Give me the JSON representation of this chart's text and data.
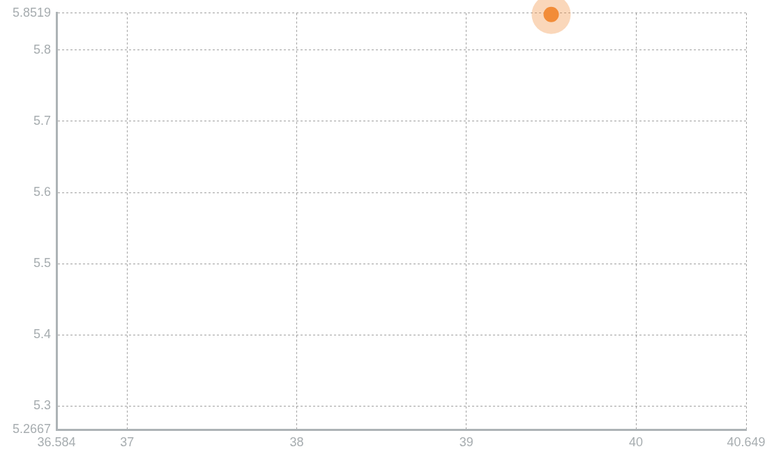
{
  "chart_data": {
    "type": "scatter",
    "series": [
      {
        "color": "#f28c38",
        "x": [
          39.5
        ],
        "values": [
          5.85
        ]
      }
    ],
    "xlim": [
      36.584,
      40.649
    ],
    "xticks": [
      36.584,
      37,
      38,
      39,
      40,
      40.649
    ],
    "ylim": [
      5.2667,
      5.8519
    ],
    "yticks": [
      5.2667,
      5.3,
      5.4,
      5.5,
      5.6,
      5.7,
      5.8,
      5.8519
    ],
    "grid": true,
    "marker": "circle"
  }
}
